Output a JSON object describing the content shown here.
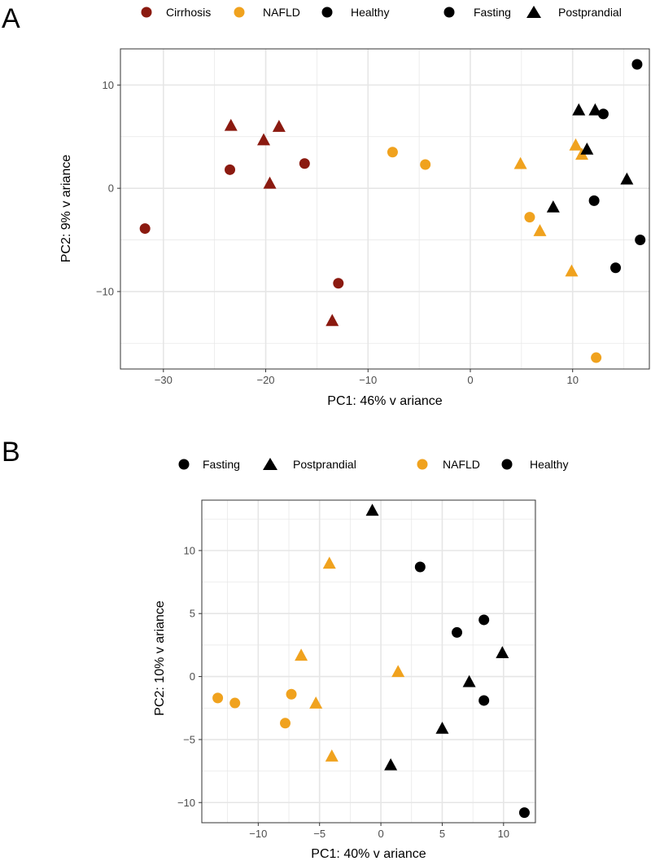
{
  "colors": {
    "cirrhosis": "#8b1a10",
    "nafld": "#f0a21e",
    "healthy": "#000000",
    "gridline": "#e6e6e6",
    "panel_border": "#333333"
  },
  "chart_data": [
    {
      "panel_label": "A",
      "type": "scatter",
      "xlabel": "PC1: 46% v ariance",
      "ylabel": "PC2: 9% v ariance",
      "xlim": [
        -34.2,
        17.5
      ],
      "ylim": [
        -17.5,
        13.5
      ],
      "xticks": [
        -30,
        -20,
        -10,
        0,
        10
      ],
      "yticks": [
        -10,
        0,
        10
      ],
      "xtick_labels": [
        "−30",
        "−20",
        "−10",
        "0",
        "10"
      ],
      "ytick_labels": [
        "−10",
        "0",
        "10"
      ],
      "legend_color": [
        {
          "label": "Cirrhosis",
          "color": "#8b1a10"
        },
        {
          "label": "NAFLD",
          "color": "#f0a21e"
        },
        {
          "label": "Healthy",
          "color": "#000000"
        }
      ],
      "legend_shape": [
        {
          "label": "Fasting",
          "shape": "circle"
        },
        {
          "label": "Postprandial",
          "shape": "triangle"
        }
      ],
      "series": [
        {
          "name": "Cirrhosis",
          "shape": "circle",
          "color": "#8b1a10",
          "points": [
            [
              -31.8,
              -3.9
            ],
            [
              -23.5,
              1.8
            ],
            [
              -16.2,
              2.4
            ],
            [
              -12.9,
              -9.2
            ]
          ]
        },
        {
          "name": "Cirrhosis",
          "shape": "triangle",
          "color": "#8b1a10",
          "points": [
            [
              -23.4,
              6.1
            ],
            [
              -20.2,
              4.7
            ],
            [
              -18.7,
              6.0
            ],
            [
              -19.6,
              0.5
            ],
            [
              -13.5,
              -12.8
            ]
          ]
        },
        {
          "name": "NAFLD",
          "shape": "circle",
          "color": "#f0a21e",
          "points": [
            [
              -7.6,
              3.5
            ],
            [
              -4.4,
              2.3
            ],
            [
              5.8,
              -2.8
            ],
            [
              12.3,
              -16.4
            ]
          ]
        },
        {
          "name": "NAFLD",
          "shape": "triangle",
          "color": "#f0a21e",
          "points": [
            [
              4.9,
              2.4
            ],
            [
              10.3,
              4.2
            ],
            [
              10.9,
              3.3
            ],
            [
              6.8,
              -4.1
            ],
            [
              9.9,
              -8.0
            ]
          ]
        },
        {
          "name": "Healthy",
          "shape": "circle",
          "color": "#000000",
          "points": [
            [
              16.3,
              12.0
            ],
            [
              13.0,
              7.2
            ],
            [
              12.1,
              -1.2
            ],
            [
              16.6,
              -5.0
            ],
            [
              14.2,
              -7.7
            ]
          ]
        },
        {
          "name": "Healthy",
          "shape": "triangle",
          "color": "#000000",
          "points": [
            [
              10.6,
              7.6
            ],
            [
              12.2,
              7.6
            ],
            [
              11.4,
              3.8
            ],
            [
              15.3,
              0.9
            ],
            [
              8.1,
              -1.8
            ]
          ]
        }
      ]
    },
    {
      "panel_label": "B",
      "type": "scatter",
      "xlabel": "PC1: 40% v ariance",
      "ylabel": "PC2: 10% v ariance",
      "xlim": [
        -14.6,
        12.6
      ],
      "ylim": [
        -11.6,
        14.0
      ],
      "xticks": [
        -10,
        -5,
        0,
        5,
        10
      ],
      "yticks": [
        -10,
        -5,
        0,
        5,
        10
      ],
      "xtick_labels": [
        "−10",
        "−5",
        "0",
        "5",
        "10"
      ],
      "ytick_labels": [
        "−10",
        "−5",
        "0",
        "5",
        "10"
      ],
      "legend_shape": [
        {
          "label": "Fasting",
          "shape": "circle"
        },
        {
          "label": "Postprandial",
          "shape": "triangle"
        }
      ],
      "legend_color": [
        {
          "label": "NAFLD",
          "color": "#f0a21e"
        },
        {
          "label": "Healthy",
          "color": "#000000"
        }
      ],
      "series": [
        {
          "name": "NAFLD",
          "shape": "circle",
          "color": "#f0a21e",
          "points": [
            [
              -13.3,
              -1.7
            ],
            [
              -11.9,
              -2.1
            ],
            [
              -7.3,
              -1.4
            ],
            [
              -7.8,
              -3.7
            ]
          ]
        },
        {
          "name": "NAFLD",
          "shape": "triangle",
          "color": "#f0a21e",
          "points": [
            [
              -4.2,
              9.0
            ],
            [
              -6.5,
              1.7
            ],
            [
              1.4,
              0.4
            ],
            [
              -5.3,
              -2.1
            ],
            [
              -4.0,
              -6.3
            ]
          ]
        },
        {
          "name": "Healthy",
          "shape": "circle",
          "color": "#000000",
          "points": [
            [
              3.2,
              8.7
            ],
            [
              6.2,
              3.5
            ],
            [
              8.4,
              4.5
            ],
            [
              8.4,
              -1.9
            ],
            [
              11.7,
              -10.8
            ]
          ]
        },
        {
          "name": "Healthy",
          "shape": "triangle",
          "color": "#000000",
          "points": [
            [
              -0.7,
              13.2
            ],
            [
              9.9,
              1.9
            ],
            [
              7.2,
              -0.4
            ],
            [
              5.0,
              -4.1
            ],
            [
              0.8,
              -7.0
            ]
          ]
        }
      ]
    }
  ]
}
